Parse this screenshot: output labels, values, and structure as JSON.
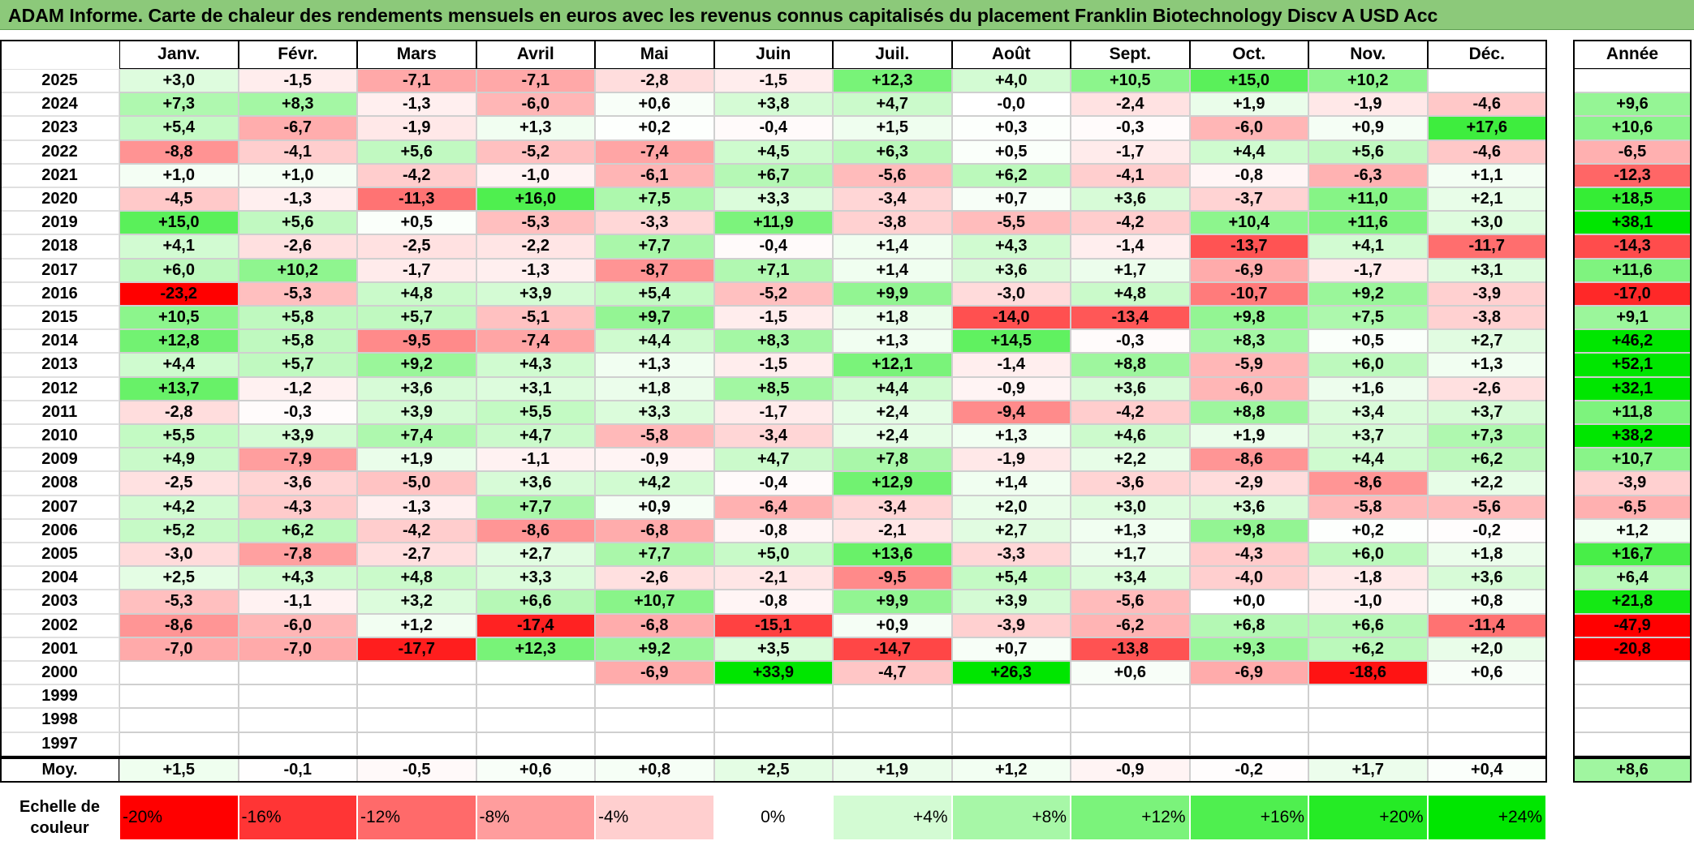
{
  "title": "ADAM Informe. Carte de chaleur des rendements mensuels en euros avec les revenus connus capitalisés du placement Franklin Biotechnology Discv A USD Acc",
  "chart_data": {
    "type": "heatmap",
    "title": "ADAM Informe. Carte de chaleur des rendements mensuels en euros avec les revenus connus capitalisés du placement Franklin Biotechnology Discv A USD Acc",
    "months": [
      "Janv.",
      "Févr.",
      "Mars",
      "Avril",
      "Mai",
      "Juin",
      "Juil.",
      "Août",
      "Sept.",
      "Oct.",
      "Nov.",
      "Déc."
    ],
    "year_header": "Année",
    "rows": [
      {
        "year": "2025",
        "values": [
          "+3,0",
          "-1,5",
          "-7,1",
          "-7,1",
          "-2,8",
          "-1,5",
          "+12,3",
          "+4,0",
          "+10,5",
          "+15,0",
          "+10,2",
          ""
        ],
        "annual": ""
      },
      {
        "year": "2024",
        "values": [
          "+7,3",
          "+8,3",
          "-1,3",
          "-6,0",
          "+0,6",
          "+3,8",
          "+4,7",
          "-0,0",
          "-2,4",
          "+1,9",
          "-1,9",
          "-4,6"
        ],
        "annual": "+9,6"
      },
      {
        "year": "2023",
        "values": [
          "+5,4",
          "-6,7",
          "-1,9",
          "+1,3",
          "+0,2",
          "-0,4",
          "+1,5",
          "+0,3",
          "-0,3",
          "-6,0",
          "+0,9",
          "+17,6"
        ],
        "annual": "+10,6"
      },
      {
        "year": "2022",
        "values": [
          "-8,8",
          "-4,1",
          "+5,6",
          "-5,2",
          "-7,4",
          "+4,5",
          "+6,3",
          "+0,5",
          "-1,7",
          "+4,4",
          "+5,6",
          "-4,6"
        ],
        "annual": "-6,5"
      },
      {
        "year": "2021",
        "values": [
          "+1,0",
          "+1,0",
          "-4,2",
          "-1,0",
          "-6,1",
          "+6,7",
          "-5,6",
          "+6,2",
          "-4,1",
          "-0,8",
          "-6,3",
          "+1,1"
        ],
        "annual": "-12,3"
      },
      {
        "year": "2020",
        "values": [
          "-4,5",
          "-1,3",
          "-11,3",
          "+16,0",
          "+7,5",
          "+3,3",
          "-3,4",
          "+0,7",
          "+3,6",
          "-3,7",
          "+11,0",
          "+2,1"
        ],
        "annual": "+18,5"
      },
      {
        "year": "2019",
        "values": [
          "+15,0",
          "+5,6",
          "+0,5",
          "-5,3",
          "-3,3",
          "+11,9",
          "-3,8",
          "-5,5",
          "-4,2",
          "+10,4",
          "+11,6",
          "+3,0"
        ],
        "annual": "+38,1"
      },
      {
        "year": "2018",
        "values": [
          "+4,1",
          "-2,6",
          "-2,5",
          "-2,2",
          "+7,7",
          "-0,4",
          "+1,4",
          "+4,3",
          "-1,4",
          "-13,7",
          "+4,1",
          "-11,7"
        ],
        "annual": "-14,3"
      },
      {
        "year": "2017",
        "values": [
          "+6,0",
          "+10,2",
          "-1,7",
          "-1,3",
          "-8,7",
          "+7,1",
          "+1,4",
          "+3,6",
          "+1,7",
          "-6,9",
          "-1,7",
          "+3,1"
        ],
        "annual": "+11,6"
      },
      {
        "year": "2016",
        "values": [
          "-23,2",
          "-5,3",
          "+4,8",
          "+3,9",
          "+5,4",
          "-5,2",
          "+9,9",
          "-3,0",
          "+4,8",
          "-10,7",
          "+9,2",
          "-3,9"
        ],
        "annual": "-17,0"
      },
      {
        "year": "2015",
        "values": [
          "+10,5",
          "+5,8",
          "+5,7",
          "-5,1",
          "+9,7",
          "-1,5",
          "+1,8",
          "-14,0",
          "-13,4",
          "+9,8",
          "+7,5",
          "-3,8"
        ],
        "annual": "+9,1"
      },
      {
        "year": "2014",
        "values": [
          "+12,8",
          "+5,8",
          "-9,5",
          "-7,4",
          "+4,4",
          "+8,3",
          "+1,3",
          "+14,5",
          "-0,3",
          "+8,3",
          "+0,5",
          "+2,7"
        ],
        "annual": "+46,2"
      },
      {
        "year": "2013",
        "values": [
          "+4,4",
          "+5,7",
          "+9,2",
          "+4,3",
          "+1,3",
          "-1,5",
          "+12,1",
          "-1,4",
          "+8,8",
          "-5,9",
          "+6,0",
          "+1,3"
        ],
        "annual": "+52,1"
      },
      {
        "year": "2012",
        "values": [
          "+13,7",
          "-1,2",
          "+3,6",
          "+3,1",
          "+1,8",
          "+8,5",
          "+4,4",
          "-0,9",
          "+3,6",
          "-6,0",
          "+1,6",
          "-2,6"
        ],
        "annual": "+32,1"
      },
      {
        "year": "2011",
        "values": [
          "-2,8",
          "-0,3",
          "+3,9",
          "+5,5",
          "+3,3",
          "-1,7",
          "+2,4",
          "-9,4",
          "-4,2",
          "+8,8",
          "+3,4",
          "+3,7"
        ],
        "annual": "+11,8"
      },
      {
        "year": "2010",
        "values": [
          "+5,5",
          "+3,9",
          "+7,4",
          "+4,7",
          "-5,8",
          "-3,4",
          "+2,4",
          "+1,3",
          "+4,6",
          "+1,9",
          "+3,7",
          "+7,3"
        ],
        "annual": "+38,2"
      },
      {
        "year": "2009",
        "values": [
          "+4,9",
          "-7,9",
          "+1,9",
          "-1,1",
          "-0,9",
          "+4,7",
          "+7,8",
          "-1,9",
          "+2,2",
          "-8,6",
          "+4,4",
          "+6,2"
        ],
        "annual": "+10,7"
      },
      {
        "year": "2008",
        "values": [
          "-2,5",
          "-3,6",
          "-5,0",
          "+3,6",
          "+4,2",
          "-0,4",
          "+12,9",
          "+1,4",
          "-3,6",
          "-2,9",
          "-8,6",
          "+2,2"
        ],
        "annual": "-3,9"
      },
      {
        "year": "2007",
        "values": [
          "+4,2",
          "-4,3",
          "-1,3",
          "+7,7",
          "+0,9",
          "-6,4",
          "-3,4",
          "+2,0",
          "+3,0",
          "+3,6",
          "-5,8",
          "-5,6"
        ],
        "annual": "-6,5"
      },
      {
        "year": "2006",
        "values": [
          "+5,2",
          "+6,2",
          "-4,2",
          "-8,6",
          "-6,8",
          "-0,8",
          "-2,1",
          "+2,7",
          "+1,3",
          "+9,8",
          "+0,2",
          "-0,2"
        ],
        "annual": "+1,2"
      },
      {
        "year": "2005",
        "values": [
          "-3,0",
          "-7,8",
          "-2,7",
          "+2,7",
          "+7,7",
          "+5,0",
          "+13,6",
          "-3,3",
          "+1,7",
          "-4,3",
          "+6,0",
          "+1,8"
        ],
        "annual": "+16,7"
      },
      {
        "year": "2004",
        "values": [
          "+2,5",
          "+4,3",
          "+4,8",
          "+3,3",
          "-2,6",
          "-2,1",
          "-9,5",
          "+5,4",
          "+3,4",
          "-4,0",
          "-1,8",
          "+3,6"
        ],
        "annual": "+6,4"
      },
      {
        "year": "2003",
        "values": [
          "-5,3",
          "-1,1",
          "+3,2",
          "+6,6",
          "+10,7",
          "-0,8",
          "+9,9",
          "+3,9",
          "-5,6",
          "+0,0",
          "-1,0",
          "+0,8"
        ],
        "annual": "+21,8"
      },
      {
        "year": "2002",
        "values": [
          "-8,6",
          "-6,0",
          "+1,2",
          "-17,4",
          "-6,8",
          "-15,1",
          "+0,9",
          "-3,9",
          "-6,2",
          "+6,8",
          "+6,6",
          "-11,4"
        ],
        "annual": "-47,9"
      },
      {
        "year": "2001",
        "values": [
          "-7,0",
          "-7,0",
          "-17,7",
          "+12,3",
          "+9,2",
          "+3,5",
          "-14,7",
          "+0,7",
          "-13,8",
          "+9,3",
          "+6,2",
          "+2,0"
        ],
        "annual": "-20,8"
      },
      {
        "year": "2000",
        "values": [
          "",
          "",
          "",
          "",
          "-6,9",
          "+33,9",
          "-4,7",
          "+26,3",
          "+0,6",
          "-6,9",
          "-18,6",
          "+0,6"
        ],
        "annual": ""
      },
      {
        "year": "1999",
        "values": [
          "",
          "",
          "",
          "",
          "",
          "",
          "",
          "",
          "",
          "",
          "",
          ""
        ],
        "annual": ""
      },
      {
        "year": "1998",
        "values": [
          "",
          "",
          "",
          "",
          "",
          "",
          "",
          "",
          "",
          "",
          "",
          ""
        ],
        "annual": ""
      },
      {
        "year": "1997",
        "values": [
          "",
          "",
          "",
          "",
          "",
          "",
          "",
          "",
          "",
          "",
          "",
          ""
        ],
        "annual": ""
      }
    ],
    "average": {
      "label": "Moy.",
      "values": [
        "+1,5",
        "-0,1",
        "-0,5",
        "+0,6",
        "+0,8",
        "+2,5",
        "+1,9",
        "+1,2",
        "-0,9",
        "-0,2",
        "+1,7",
        "+0,4"
      ],
      "annual": "+8,6"
    },
    "color_scale": {
      "label": "Echelle de couleur",
      "steps": [
        {
          "label": "-20%",
          "value": -20,
          "color": "#ff0000"
        },
        {
          "label": "-16%",
          "value": -16,
          "color": "#ff3535"
        },
        {
          "label": "-12%",
          "value": -12,
          "color": "#ff6a6a"
        },
        {
          "label": "-8%",
          "value": -8,
          "color": "#ff9d9d"
        },
        {
          "label": "-4%",
          "value": -4,
          "color": "#ffcfcf"
        },
        {
          "label": "0%",
          "value": 0,
          "color": "#ffffff"
        },
        {
          "label": "+4%",
          "value": 4,
          "color": "#d3fbd3"
        },
        {
          "label": "+8%",
          "value": 8,
          "color": "#a7f7a7"
        },
        {
          "label": "+12%",
          "value": 12,
          "color": "#7bf37b"
        },
        {
          "label": "+16%",
          "value": 16,
          "color": "#4fef4f"
        },
        {
          "label": "+20%",
          "value": 20,
          "color": "#25eb25"
        },
        {
          "label": "+24%",
          "value": 24,
          "color": "#00e600"
        }
      ]
    }
  }
}
